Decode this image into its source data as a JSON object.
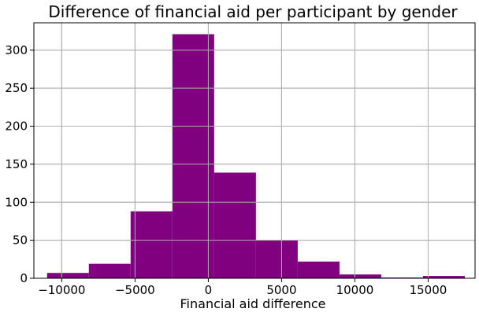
{
  "chart_data": {
    "type": "bar",
    "title": "Difference of financial aid per participant by gender",
    "xlabel": "Financial aid difference",
    "ylabel": "",
    "bar_color": "#800080",
    "grid": true,
    "xlim": [
      -11900,
      18200
    ],
    "ylim": [
      0,
      336
    ],
    "xticks": [
      -10000,
      -5000,
      0,
      5000,
      10000,
      15000
    ],
    "xtick_labels": [
      "−10000",
      "−5000",
      "0",
      "5000",
      "10000",
      "15000"
    ],
    "yticks": [
      0,
      50,
      100,
      150,
      200,
      250,
      300
    ],
    "ytick_labels": [
      "0",
      "50",
      "100",
      "150",
      "200",
      "250",
      "300"
    ],
    "bins": [
      {
        "x0": -11000,
        "x1": -8150,
        "count": 7
      },
      {
        "x0": -8150,
        "x1": -5300,
        "count": 19
      },
      {
        "x0": -5300,
        "x1": -2450,
        "count": 88
      },
      {
        "x0": -2450,
        "x1": 400,
        "count": 321
      },
      {
        "x0": 400,
        "x1": 3250,
        "count": 139
      },
      {
        "x0": 3250,
        "x1": 6100,
        "count": 50
      },
      {
        "x0": 6100,
        "x1": 8950,
        "count": 22
      },
      {
        "x0": 8950,
        "x1": 11800,
        "count": 5
      },
      {
        "x0": 11800,
        "x1": 14650,
        "count": 1
      },
      {
        "x0": 14650,
        "x1": 17500,
        "count": 3
      }
    ]
  }
}
